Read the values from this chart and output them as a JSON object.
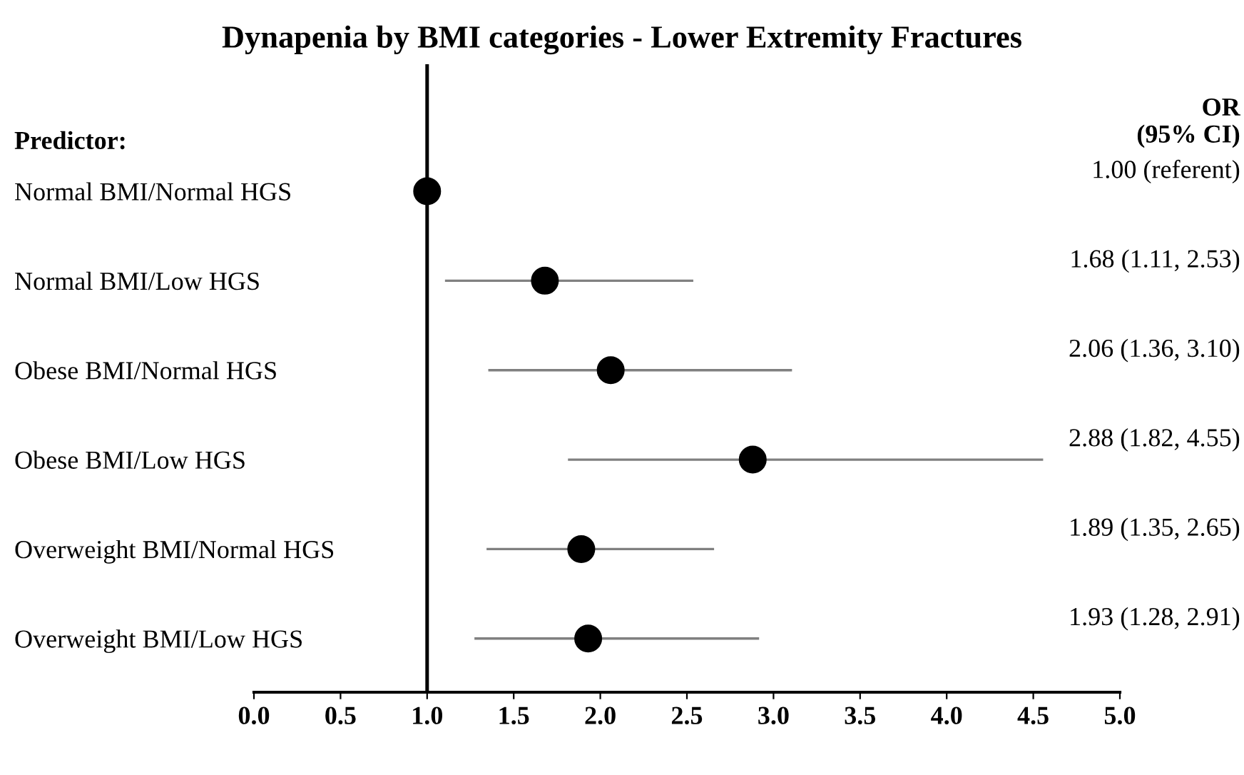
{
  "chart_data": {
    "type": "scatter",
    "orientation": "horizontal",
    "title": "Dynapenia by BMI categories - Lower Extremity Fractures",
    "ylabel": "Predictor:",
    "categories": [
      "Normal BMI/Normal HGS",
      "Normal BMI/Low HGS",
      "Obese BMI/Normal HGS",
      "Obese BMI/Low HGS",
      "Overweight BMI/Normal HGS",
      "Overweight BMI/Low HGS"
    ],
    "series": [
      {
        "color": "#000000",
        "values": [
          1.0,
          1.68,
          2.06,
          2.88,
          1.89,
          1.93
        ],
        "errors": [
          null,
          [
            1.11,
            2.53
          ],
          [
            1.36,
            3.1
          ],
          [
            1.82,
            4.55
          ],
          [
            1.35,
            2.65
          ],
          [
            1.28,
            2.91
          ]
        ],
        "value_labels": [
          "1.00 (referent)",
          "1.68 (1.11, 2.53)",
          "2.06 (1.36, 3.10)",
          "2.88 (1.82, 4.55)",
          "1.89 (1.35, 2.65)",
          "1.93 (1.28, 2.91)"
        ]
      }
    ],
    "annotations": [
      "OR\n(95% CI)"
    ],
    "xlim": [
      0,
      5
    ],
    "xticks": [
      {
        "value": 0,
        "label": "0.0"
      },
      {
        "value": 0.5,
        "label": "0.5"
      },
      {
        "value": 1,
        "label": "1.0"
      },
      {
        "value": 1.5,
        "label": "1.5"
      },
      {
        "value": 2,
        "label": "2.0"
      },
      {
        "value": 2.5,
        "label": "2.5"
      },
      {
        "value": 3,
        "label": "3.0"
      },
      {
        "value": 3.5,
        "label": "3.5"
      },
      {
        "value": 4,
        "label": "4.0"
      },
      {
        "value": 4.5,
        "label": "4.5"
      },
      {
        "value": 5,
        "label": "5.0"
      }
    ],
    "ref_lines": [
      {
        "axis": "x",
        "value": 1,
        "color": "#000000"
      }
    ],
    "marker": "circle",
    "grid": false,
    "legend": false
  }
}
